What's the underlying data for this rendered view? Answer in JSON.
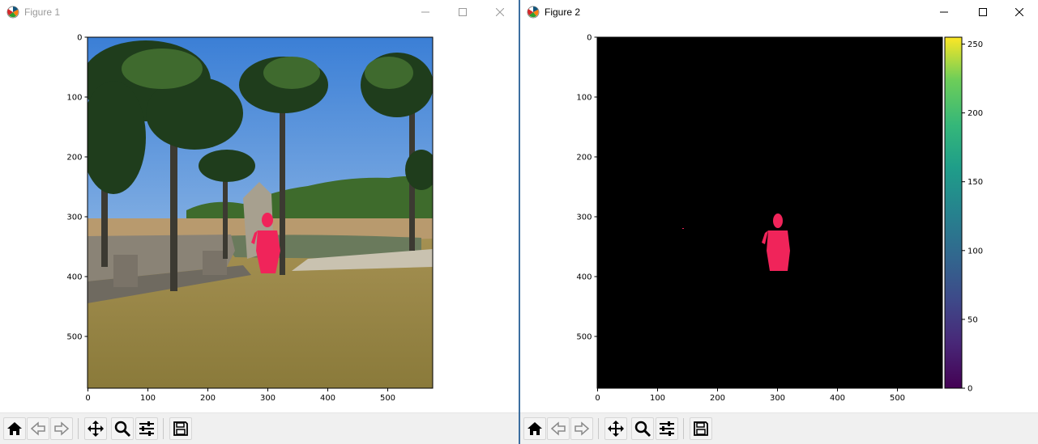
{
  "windows": [
    {
      "title": "Figure 1",
      "x_ticks": [
        "0",
        "100",
        "200",
        "300",
        "400",
        "500"
      ],
      "y_ticks": [
        "0",
        "100",
        "200",
        "300",
        "400",
        "500"
      ]
    },
    {
      "title": "Figure 2",
      "x_ticks": [
        "0",
        "100",
        "200",
        "300",
        "400",
        "500"
      ],
      "y_ticks": [
        "0",
        "100",
        "200",
        "300",
        "400",
        "500"
      ],
      "colorbar_ticks": [
        "0",
        "50",
        "100",
        "150",
        "200",
        "250"
      ],
      "colorbar_range": [
        0,
        255
      ],
      "colormap": "viridis"
    }
  ],
  "toolbar": [
    {
      "icon": "home-icon"
    },
    {
      "icon": "back-arrow-icon"
    },
    {
      "icon": "forward-arrow-icon"
    },
    {
      "icon": "pan-icon"
    },
    {
      "icon": "zoom-icon"
    },
    {
      "icon": "configure-subplots-icon"
    },
    {
      "icon": "save-icon"
    }
  ],
  "colors": {
    "mask_color": "#f0245a",
    "sky": "#6aa3dc",
    "window_border": "#3c6ea0",
    "toolbar_bg": "#f0f0f0"
  }
}
